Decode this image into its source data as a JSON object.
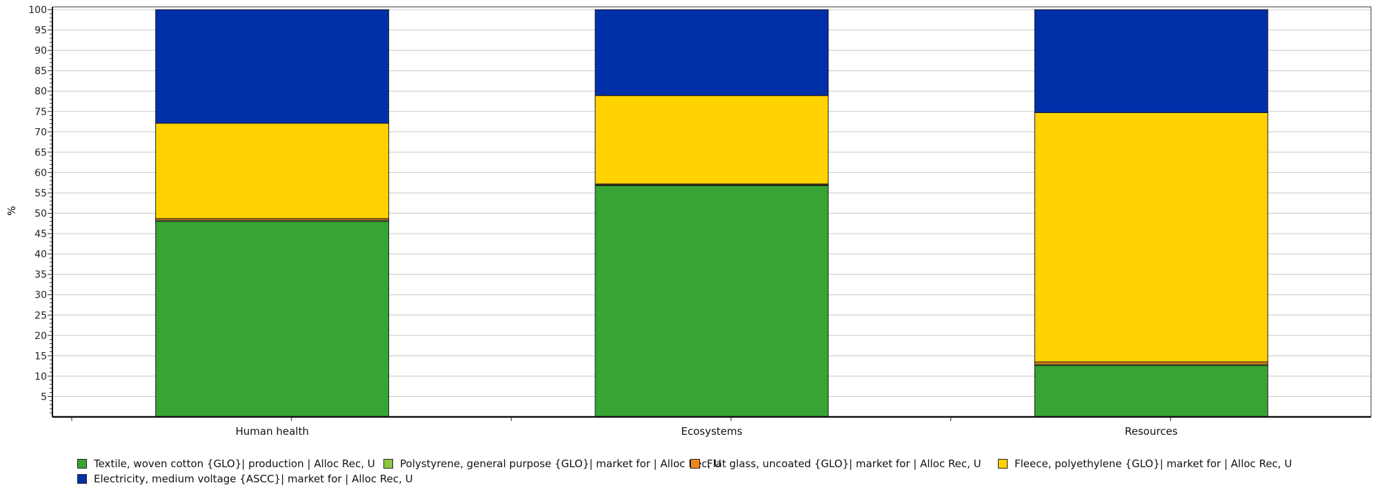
{
  "chart_data": {
    "type": "bar",
    "stacked": true,
    "ylabel": "%",
    "ylim": [
      0,
      100
    ],
    "yticks": [
      5,
      10,
      15,
      20,
      25,
      30,
      35,
      40,
      45,
      50,
      55,
      60,
      65,
      70,
      75,
      80,
      85,
      90,
      95,
      100
    ],
    "grid": true,
    "legend_position": "bottom",
    "categories": [
      "Human health",
      "Ecosystems",
      "Resources"
    ],
    "series": [
      {
        "name": "Textile, woven cotton {GLO}| production | Alloc Rec, U",
        "color": "#36a534",
        "values": [
          48.0,
          56.8,
          12.6
        ]
      },
      {
        "name": "Polystyrene, general purpose {GLO}| market for | Alloc Rec, U",
        "color": "#8cc63f",
        "values": [
          0.3,
          0.2,
          0.3
        ]
      },
      {
        "name": "Flat glass, uncoated {GLO}| market for | Alloc Rec, U",
        "color": "#f0871a",
        "values": [
          0.4,
          0.2,
          0.6
        ]
      },
      {
        "name": "Fleece, polyethylene {GLO}| market for | Alloc Rec, U",
        "color": "#ffd200",
        "values": [
          23.4,
          21.7,
          61.2
        ]
      },
      {
        "name": "Electricity, medium voltage {ASCC}| market for | Alloc Rec, U",
        "color": "#0030a8",
        "values": [
          27.9,
          21.1,
          25.3
        ]
      }
    ]
  }
}
